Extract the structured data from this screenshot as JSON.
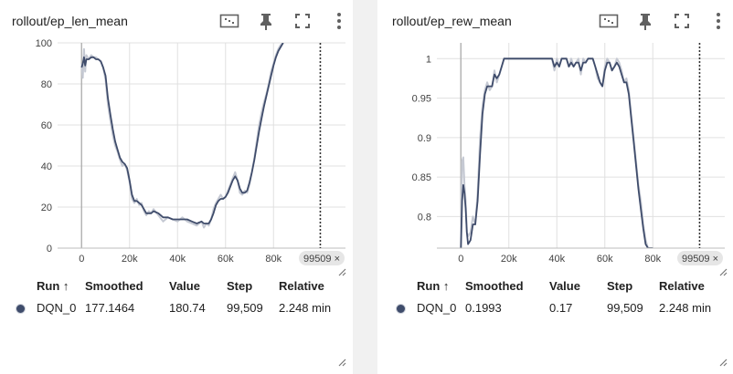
{
  "panels": [
    {
      "title": "rollout/ep_len_mean",
      "step_badge": "99509 ×",
      "table": {
        "headers": {
          "run": "Run ↑",
          "smoothed": "Smoothed",
          "value": "Value",
          "step": "Step",
          "relative": "Relative"
        },
        "rows": [
          {
            "run": "DQN_0",
            "smoothed": "177.1464",
            "value": "180.74",
            "step": "99,509",
            "relative": "2.248 min"
          }
        ]
      }
    },
    {
      "title": "rollout/ep_rew_mean",
      "step_badge": "99509 ×",
      "table": {
        "headers": {
          "run": "Run ↑",
          "smoothed": "Smoothed",
          "value": "Value",
          "step": "Step",
          "relative": "Relative"
        },
        "rows": [
          {
            "run": "DQN_0",
            "smoothed": "0.1993",
            "value": "0.17",
            "step": "99,509",
            "relative": "2.248 min"
          }
        ]
      }
    }
  ],
  "icons": [
    "fit-domain-icon",
    "pin-icon",
    "fullscreen-icon",
    "more-vert-icon",
    "resize-handle-icon"
  ],
  "colors": {
    "smoothed": "#3f4c6b",
    "raw": "#c5c9d3",
    "run_dot": "#3f4c6b",
    "grid": "#e0e0e0",
    "step_line": "#333333"
  },
  "chart_data": [
    {
      "type": "line",
      "xlim": [
        -10000,
        110000
      ],
      "ylim": [
        0,
        100
      ],
      "xticks": [
        0,
        20000,
        40000,
        60000,
        80000
      ],
      "xtick_labels": [
        "0",
        "20k",
        "40k",
        "60k",
        "80k"
      ],
      "yticks": [
        0,
        20,
        40,
        60,
        80,
        100
      ],
      "ytick_labels": [
        "0",
        "20",
        "40",
        "60",
        "80",
        "100"
      ],
      "step_marker": 99509,
      "series": [
        {
          "x": [
            0,
            500,
            1000,
            1500,
            2000,
            3000,
            4000,
            5000,
            6000,
            7000,
            8000,
            9000,
            10000,
            11000,
            12000,
            13000,
            14000,
            15000,
            16000,
            17000,
            18000,
            19000,
            20000,
            21000,
            22000,
            23000,
            24000,
            25000,
            26000,
            27000,
            28000,
            29000,
            30000,
            32000,
            34000,
            36000,
            38000,
            40000,
            42000,
            44000,
            46000,
            48000,
            50000,
            51000,
            52000,
            53000,
            54000,
            55000,
            56000,
            57000,
            58000,
            59000,
            60000,
            61000,
            62000,
            63000,
            64000,
            65000,
            66000,
            67000,
            68000,
            69000,
            70000,
            71000,
            72000,
            73000,
            74000,
            75000,
            76000,
            77000,
            78000,
            79000,
            80000,
            81000,
            82000,
            83000,
            84000
          ],
          "raw": [
            90,
            83,
            97,
            86,
            94,
            92,
            94,
            93,
            93,
            92,
            91,
            88,
            82,
            70,
            62,
            55,
            50,
            47,
            43,
            40,
            41,
            38,
            32,
            24,
            22,
            24,
            21,
            22,
            18,
            16,
            18,
            17,
            19,
            16,
            13,
            15,
            14,
            13,
            15,
            13,
            12,
            11,
            13,
            10,
            12,
            11,
            14,
            19,
            22,
            24,
            26,
            24,
            25,
            28,
            31,
            34,
            37,
            33,
            27,
            26,
            28,
            27,
            31,
            37,
            44,
            52,
            60,
            66,
            71,
            75,
            80,
            86,
            90,
            94,
            97,
            99,
            100
          ],
          "smoothed": [
            88,
            90,
            93,
            89,
            92,
            92,
            93,
            93,
            92,
            92,
            91,
            88,
            84,
            73,
            65,
            58,
            52,
            48,
            44,
            42,
            41,
            39,
            33,
            26,
            23,
            23,
            22,
            21,
            19,
            17,
            17,
            17,
            18,
            17,
            15,
            15,
            14,
            14,
            14,
            14,
            13,
            12,
            13,
            12,
            12,
            12,
            14,
            17,
            21,
            23,
            24,
            24,
            25,
            27,
            30,
            33,
            35,
            33,
            29,
            27,
            27,
            28,
            32,
            37,
            43,
            50,
            57,
            63,
            69,
            74,
            79,
            84,
            89,
            93,
            96,
            98,
            100
          ]
        }
      ]
    },
    {
      "type": "line",
      "xlim": [
        -10000,
        110000
      ],
      "ylim": [
        0.76,
        1.02
      ],
      "xticks": [
        0,
        20000,
        40000,
        60000,
        80000
      ],
      "xtick_labels": [
        "0",
        "20k",
        "40k",
        "60k",
        "80k"
      ],
      "yticks": [
        0.8,
        0.85,
        0.9,
        0.95,
        1.0
      ],
      "ytick_labels": [
        "0.8",
        "0.85",
        "0.9",
        "0.95",
        "1"
      ],
      "step_marker": 99509,
      "series": [
        {
          "x": [
            0,
            500,
            1000,
            1500,
            2000,
            2500,
            3000,
            4000,
            5000,
            6000,
            7000,
            8000,
            9000,
            10000,
            11000,
            12000,
            13000,
            14000,
            15000,
            16000,
            17000,
            18000,
            19000,
            20000,
            25000,
            30000,
            35000,
            38000,
            39000,
            40000,
            41000,
            42000,
            44000,
            45000,
            46000,
            47000,
            48000,
            49000,
            50000,
            51000,
            52000,
            53000,
            54000,
            55000,
            56000,
            57000,
            58000,
            59000,
            60000,
            61000,
            62000,
            63000,
            64000,
            65000,
            66000,
            67000,
            68000,
            69000,
            70000,
            71000,
            72000,
            73000,
            74000,
            75000,
            76000,
            77000,
            78000,
            79000,
            80000
          ],
          "raw": [
            0.76,
            0.87,
            0.875,
            0.84,
            0.82,
            0.78,
            0.775,
            0.78,
            0.8,
            0.79,
            0.83,
            0.9,
            0.94,
            0.96,
            0.97,
            0.96,
            0.965,
            0.985,
            0.97,
            0.98,
            0.99,
            1.0,
            1.0,
            1.0,
            1.0,
            1.0,
            1.0,
            1.0,
            0.985,
            1.0,
            0.99,
            1.0,
            1.0,
            0.99,
            1.0,
            0.99,
            0.995,
            1.0,
            0.98,
            1.0,
            0.995,
            1.0,
            1.0,
            1.0,
            0.99,
            0.975,
            0.97,
            0.965,
            0.99,
            1.0,
            0.995,
            0.985,
            0.99,
            1.0,
            0.995,
            0.985,
            0.97,
            0.975,
            0.96,
            0.93,
            0.9,
            0.87,
            0.84,
            0.82,
            0.79,
            0.77,
            0.76,
            0.76,
            0.76
          ],
          "smoothed": [
            0.76,
            0.82,
            0.84,
            0.83,
            0.81,
            0.78,
            0.765,
            0.77,
            0.79,
            0.79,
            0.82,
            0.88,
            0.93,
            0.955,
            0.965,
            0.965,
            0.965,
            0.98,
            0.975,
            0.98,
            0.99,
            1.0,
            1.0,
            1.0,
            1.0,
            1.0,
            1.0,
            1.0,
            0.99,
            0.995,
            0.99,
            1.0,
            1.0,
            0.99,
            0.995,
            0.99,
            0.995,
            0.995,
            0.985,
            0.995,
            0.995,
            1.0,
            1.0,
            1.0,
            0.99,
            0.98,
            0.97,
            0.965,
            0.985,
            0.995,
            0.995,
            0.985,
            0.99,
            0.995,
            0.99,
            0.98,
            0.97,
            0.97,
            0.955,
            0.925,
            0.895,
            0.865,
            0.835,
            0.81,
            0.785,
            0.765,
            0.76,
            0.76,
            0.76
          ]
        }
      ]
    }
  ]
}
